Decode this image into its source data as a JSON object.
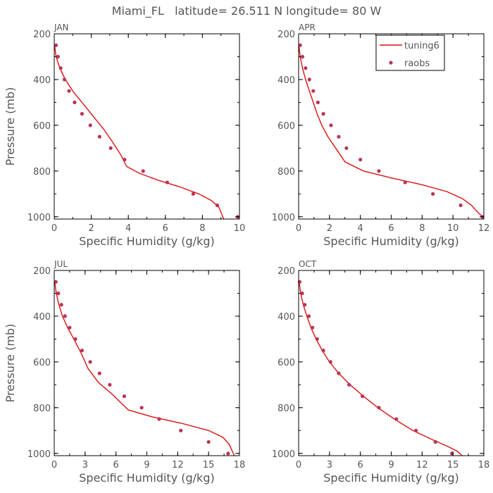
{
  "figure": {
    "title": "Miami_FL   latitude= 26.511 N longitude= 80 W"
  },
  "chart_data": [
    {
      "type": "line",
      "panel_label": "JAN",
      "xlabel": "Specific Humidity (g/kg)",
      "ylabel": "Pressure (mb)",
      "xlim": [
        0,
        10
      ],
      "ylim": [
        1010,
        200
      ],
      "xticks": [
        0,
        2,
        4,
        6,
        8,
        10
      ],
      "yticks": [
        200,
        400,
        600,
        800,
        1000
      ],
      "series": [
        {
          "name": "tuning6",
          "kind": "line",
          "color": "#dd1111",
          "x": [
            0.02,
            0.1,
            0.3,
            0.6,
            1.0,
            1.5,
            2.1,
            2.7,
            3.2,
            3.6,
            3.9,
            4.6,
            5.6,
            6.8,
            7.8,
            8.5,
            8.9,
            9.15
          ],
          "y": [
            250,
            300,
            350,
            400,
            450,
            500,
            560,
            620,
            680,
            730,
            780,
            810,
            840,
            870,
            900,
            930,
            960,
            1010
          ]
        },
        {
          "name": "raobs",
          "kind": "scatter",
          "color": "#bb3355",
          "x": [
            0.1,
            0.2,
            0.35,
            0.55,
            0.8,
            1.1,
            1.5,
            1.95,
            2.45,
            3.05,
            3.8,
            4.8,
            6.1,
            7.5,
            8.8,
            9.9
          ],
          "y": [
            250,
            300,
            350,
            400,
            450,
            500,
            550,
            600,
            650,
            700,
            750,
            800,
            850,
            900,
            950,
            1000
          ]
        }
      ]
    },
    {
      "type": "line",
      "panel_label": "APR",
      "xlabel": "Specific Humidity (g/kg)",
      "ylabel": "",
      "xlim": [
        0,
        12
      ],
      "ylim": [
        1010,
        200
      ],
      "xticks": [
        0,
        2,
        4,
        6,
        8,
        10,
        12
      ],
      "yticks": [
        200,
        400,
        600,
        800,
        1000
      ],
      "legend": {
        "position": "top-right"
      },
      "series": [
        {
          "name": "tuning6",
          "kind": "line",
          "color": "#dd1111",
          "x": [
            0.02,
            0.1,
            0.25,
            0.45,
            0.7,
            0.95,
            1.2,
            1.5,
            1.9,
            2.4,
            3.0,
            4.2,
            6.0,
            8.0,
            9.6,
            10.6,
            11.2,
            11.6,
            12.0
          ],
          "y": [
            250,
            300,
            350,
            400,
            450,
            500,
            550,
            600,
            650,
            700,
            760,
            800,
            830,
            860,
            890,
            920,
            950,
            980,
            1005
          ]
        },
        {
          "name": "raobs",
          "kind": "scatter",
          "color": "#bb3355",
          "x": [
            0.1,
            0.25,
            0.45,
            0.7,
            0.95,
            1.25,
            1.6,
            2.1,
            2.6,
            3.1,
            4.0,
            5.2,
            6.9,
            8.7,
            10.5,
            11.9
          ],
          "y": [
            250,
            300,
            350,
            400,
            450,
            500,
            550,
            600,
            650,
            700,
            750,
            800,
            850,
            900,
            950,
            1000
          ]
        }
      ]
    },
    {
      "type": "line",
      "panel_label": "JUL",
      "xlabel": "Specific Humidity (g/kg)",
      "ylabel": "Pressure (mb)",
      "xlim": [
        0,
        18
      ],
      "ylim": [
        1010,
        200
      ],
      "xticks": [
        0,
        3,
        6,
        9,
        12,
        15,
        18
      ],
      "yticks": [
        200,
        400,
        600,
        800,
        1000
      ],
      "series": [
        {
          "name": "tuning6",
          "kind": "line",
          "color": "#dd1111",
          "x": [
            0.05,
            0.2,
            0.45,
            0.8,
            1.3,
            1.9,
            2.6,
            3.3,
            4.3,
            5.6,
            6.5,
            7.2,
            9.5,
            12.5,
            15.0,
            16.4,
            17.0,
            17.5
          ],
          "y": [
            250,
            300,
            350,
            400,
            450,
            500,
            560,
            630,
            690,
            740,
            780,
            810,
            840,
            870,
            900,
            930,
            960,
            1010
          ]
        },
        {
          "name": "raobs",
          "kind": "scatter",
          "color": "#bb3355",
          "x": [
            0.15,
            0.4,
            0.7,
            1.05,
            1.5,
            2.05,
            2.7,
            3.5,
            4.4,
            5.4,
            6.8,
            8.5,
            10.2,
            12.3,
            15.0,
            16.9
          ],
          "y": [
            250,
            300,
            350,
            400,
            450,
            500,
            550,
            600,
            650,
            700,
            750,
            800,
            850,
            900,
            950,
            1000
          ]
        }
      ]
    },
    {
      "type": "line",
      "panel_label": "OCT",
      "xlabel": "Specific Humidity (g/kg)",
      "ylabel": "",
      "xlim": [
        0,
        18
      ],
      "ylim": [
        1010,
        200
      ],
      "xticks": [
        0,
        3,
        6,
        9,
        12,
        15,
        18
      ],
      "yticks": [
        200,
        400,
        600,
        800,
        1000
      ],
      "series": [
        {
          "name": "tuning6",
          "kind": "line",
          "color": "#dd1111",
          "x": [
            0.05,
            0.2,
            0.45,
            0.8,
            1.2,
            1.7,
            2.3,
            3.0,
            3.9,
            5.0,
            6.3,
            7.7,
            9.3,
            11.1,
            13.0,
            14.5,
            15.4,
            15.9
          ],
          "y": [
            250,
            300,
            350,
            400,
            450,
            500,
            550,
            600,
            650,
            700,
            750,
            800,
            850,
            900,
            940,
            970,
            990,
            1010
          ]
        },
        {
          "name": "raobs",
          "kind": "scatter",
          "color": "#bb3355",
          "x": [
            0.1,
            0.35,
            0.6,
            1.0,
            1.35,
            1.8,
            2.4,
            3.1,
            3.9,
            4.9,
            6.2,
            7.8,
            9.5,
            11.4,
            13.3,
            14.9
          ],
          "y": [
            250,
            300,
            350,
            400,
            450,
            500,
            550,
            600,
            650,
            700,
            750,
            800,
            850,
            900,
            950,
            1000
          ]
        }
      ]
    }
  ]
}
